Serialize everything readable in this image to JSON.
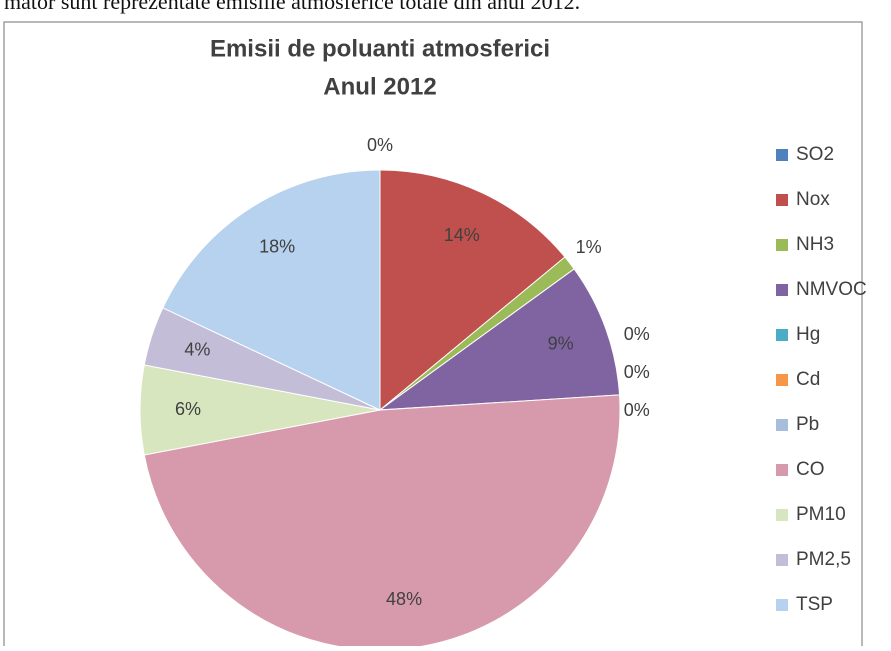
{
  "document_text": "mator sunt reprezentate emisiile atmosferice totale din anul 2012.",
  "chart_data": {
    "type": "pie",
    "title": "Emisii de poluanti atmosferici",
    "subtitle": "Anul 2012",
    "categories": [
      "SO2",
      "Nox",
      "NH3",
      "NMVOC",
      "Hg",
      "Cd",
      "Pb",
      "CO",
      "PM10",
      "PM2,5",
      "TSP"
    ],
    "values": [
      0,
      14,
      1,
      9,
      0,
      0,
      0,
      48,
      6,
      4,
      18
    ],
    "value_labels": [
      "0%",
      "14%",
      "1%",
      "9%",
      "0%",
      "0%",
      "0%",
      "48%",
      "6%",
      "4%",
      "18%"
    ],
    "colors": [
      "#4f81bd",
      "#c0504d",
      "#9bbb59",
      "#8064a2",
      "#4bacc6",
      "#f79646",
      "#a6bddb",
      "#d79aac",
      "#d7e6bf",
      "#c4bdd8",
      "#b6d2ee"
    ],
    "legend": "right"
  }
}
